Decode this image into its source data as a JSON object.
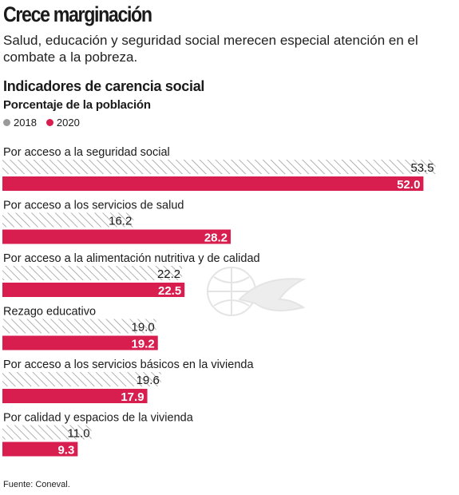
{
  "header": {
    "title": "Crece marginación",
    "subtitle": "Salud, educación y seguridad social merecen especial atención en el combate a la pobreza."
  },
  "chart_data": {
    "type": "bar",
    "orientation": "horizontal",
    "title": "Indicadores de carencia social",
    "subtitle": "Porcentaje de la población",
    "categories": [
      "Por acceso a la seguridad social",
      "Por acceso a los servicios de salud",
      "Por acceso a la alimentación nutritiva y de calidad",
      "Rezago educativo",
      "Por acceso a los servicios básicos en la vivienda",
      "Por calidad y espacios de la vivienda"
    ],
    "series": [
      {
        "name": "2018",
        "values": [
          53.5,
          16.2,
          22.2,
          19.0,
          19.6,
          11.0
        ],
        "color": "#9a9a9a",
        "style": "hatched"
      },
      {
        "name": "2020",
        "values": [
          52.0,
          28.2,
          22.5,
          19.2,
          17.9,
          9.3
        ],
        "color": "#d81e4f",
        "style": "solid"
      }
    ],
    "value_labels": {
      "2018": [
        "53.5",
        "16.2",
        "22.2",
        "19.0",
        "19.6",
        "11.0"
      ],
      "2020": [
        "52.0",
        "28.2",
        "22.5",
        "19.2",
        "17.9",
        "9.3"
      ]
    },
    "xlim": [
      0,
      56
    ],
    "legend": "top-left",
    "grid": false
  },
  "footer": {
    "source": "Fuente: Coneval."
  }
}
